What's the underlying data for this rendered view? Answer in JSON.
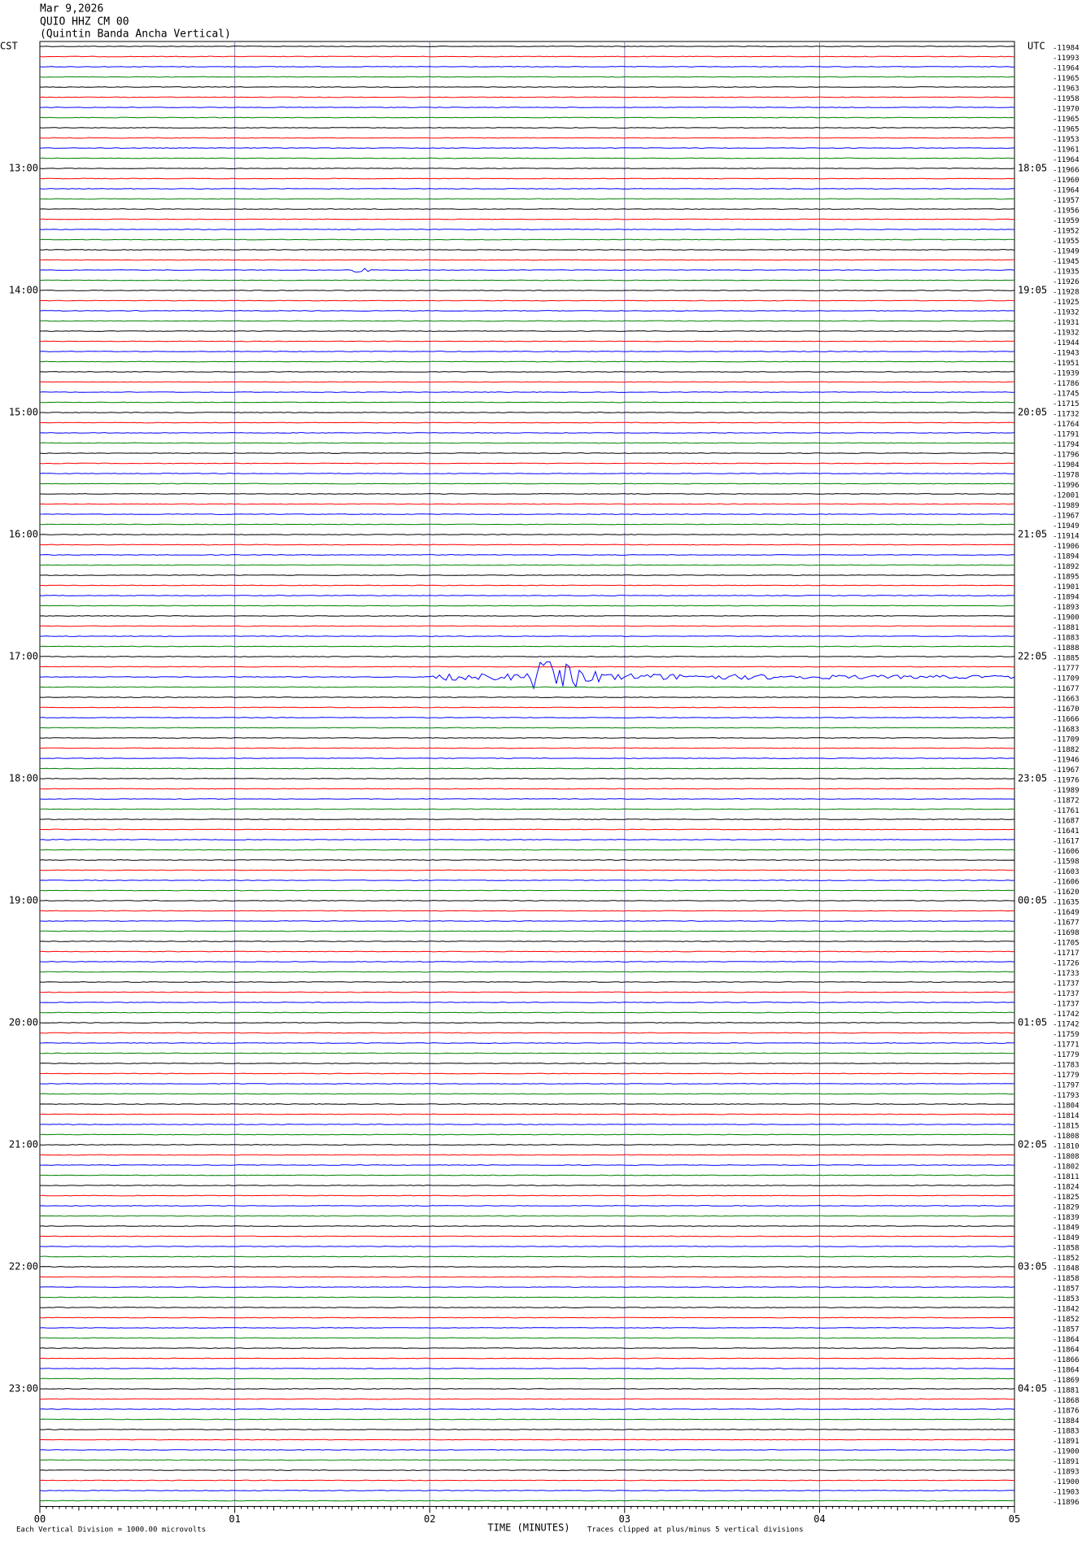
{
  "header": {
    "date": "Mar 9,2026",
    "station": "QUIO HHZ CM 00",
    "description": "(Quintin Banda Ancha Vertical)"
  },
  "left_axis": {
    "label": "CST",
    "times": [
      "13:00",
      "14:00",
      "15:00",
      "16:00",
      "17:00",
      "18:00",
      "19:00",
      "20:00",
      "21:00",
      "22:00",
      "23:00"
    ]
  },
  "right_axis": {
    "label": "UTC",
    "times": [
      "18:05",
      "19:05",
      "20:05",
      "21:05",
      "22:05",
      "23:05",
      "00:05",
      "01:05",
      "02:05",
      "03:05",
      "04:05"
    ]
  },
  "trace_offsets": [
    -11984,
    -11993,
    -11964,
    -11965,
    -11963,
    -11958,
    -11970,
    -11965,
    -11965,
    -11953,
    -11961,
    -11964,
    -11966,
    -11960,
    -11964,
    -11957,
    -11956,
    -11959,
    -11952,
    -11955,
    -11949,
    -11945,
    -11935,
    -11926,
    -11928,
    -11925,
    -11932,
    -11931,
    -11932,
    -11944,
    -11943,
    -11951,
    -11939,
    -11786,
    -11745,
    -11715,
    -11732,
    -11764,
    -11791,
    -11794,
    -11796,
    -11904,
    -11978,
    -11996,
    -12001,
    -11989,
    -11967,
    -11949,
    -11914,
    -11906,
    -11894,
    -11892,
    -11895,
    -11901,
    -11894,
    -11893,
    -11900,
    -11881,
    -11883,
    -11888,
    -11885,
    -11777,
    -11709,
    -11677,
    -11663,
    -11670,
    -11666,
    -11683,
    -11709,
    -11882,
    -11946,
    -11967,
    -11976,
    -11989,
    -11872,
    -11761,
    -11687,
    -11641,
    -11617,
    -11606,
    -11598,
    -11603,
    -11606,
    -11620,
    -11635,
    -11649,
    -11677,
    -11698,
    -11705,
    -11717,
    -11726,
    -11733,
    -11737,
    -11737,
    -11737,
    -11742,
    -11742,
    -11759,
    -11771,
    -11779,
    -11783,
    -11779,
    -11797,
    -11793,
    -11804,
    -11814,
    -11815,
    -11808,
    -11810,
    -11808,
    -11802,
    -11811,
    -11824,
    -11825,
    -11829,
    -11839,
    -11849,
    -11849,
    -11858,
    -11852,
    -11848,
    -11858,
    -11857,
    -11853,
    -11842,
    -11852,
    -11857,
    -11864,
    -11864,
    -11866,
    -11864,
    -11869,
    -11881,
    -11868,
    -11876,
    -11884,
    -11883,
    -11891,
    -11900,
    -11891,
    -11893,
    -11900,
    -11903,
    -11896
  ],
  "trace_colors": [
    "#000000",
    "#ff0000",
    "#0000ff",
    "#008000"
  ],
  "x_axis": {
    "ticks": [
      "00",
      "01",
      "02",
      "03",
      "04",
      "05"
    ],
    "title": "TIME (MINUTES)"
  },
  "footer": {
    "scale_note": "Each Vertical Division = 1000.00 microvolts",
    "clip_note": "Traces clipped at plus/minus 5 vertical divisions"
  }
}
